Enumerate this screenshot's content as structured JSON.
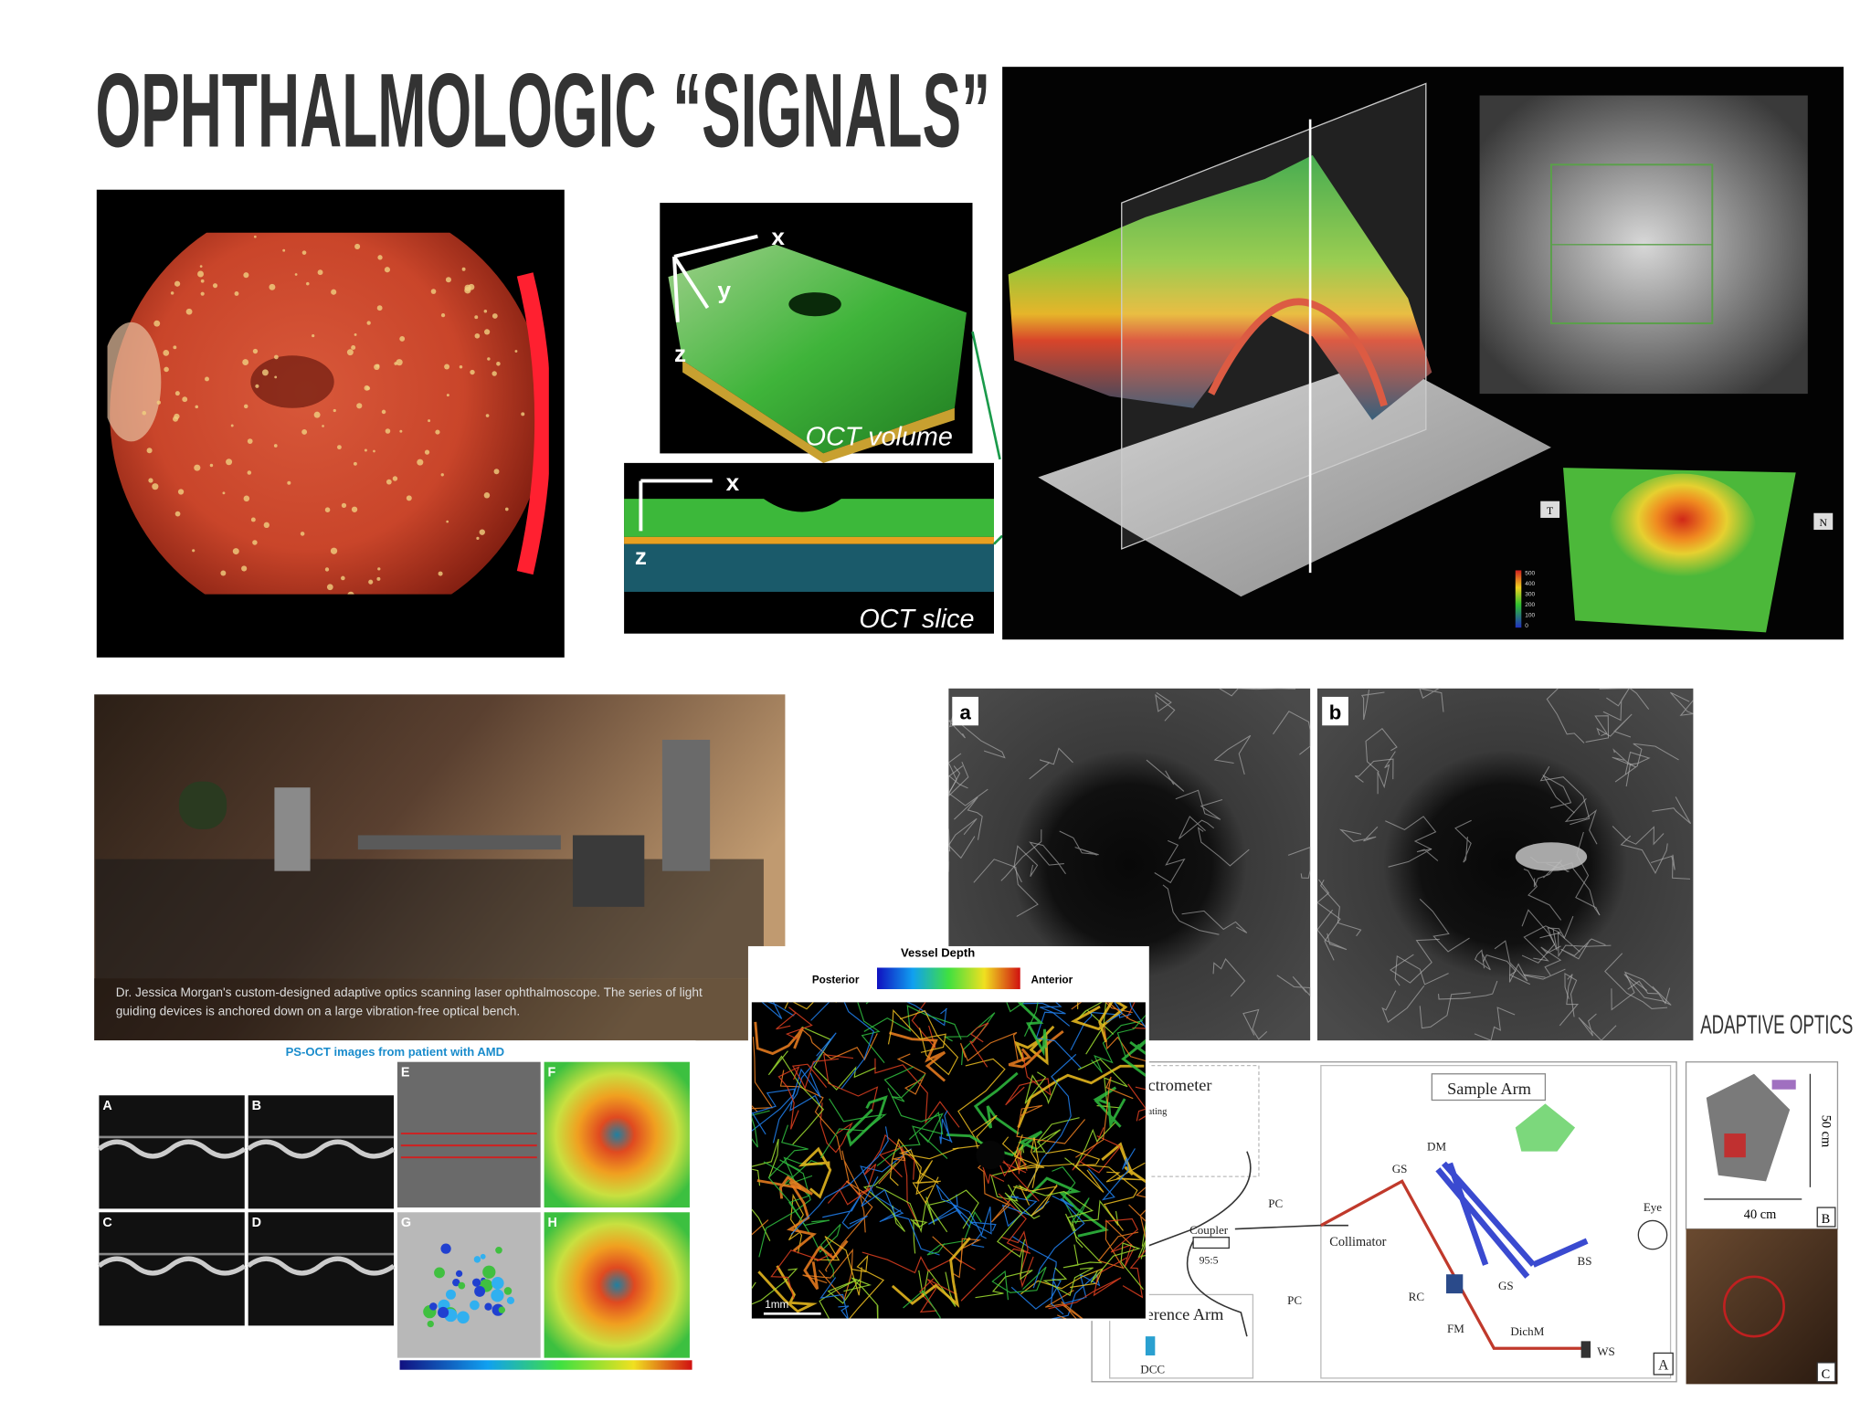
{
  "title": "OPHTHALMOLOGIC “SIGNALS”",
  "oct": {
    "volume_axes": [
      "x",
      "y",
      "z"
    ],
    "volume_label": "OCT volume",
    "slice_axes": [
      "x",
      "z"
    ],
    "slice_label": "OCT slice"
  },
  "oct_3d": {
    "orientation": [
      "T",
      "N"
    ],
    "colorbar_ticks": [
      "500",
      "400",
      "300",
      "200",
      "100",
      "0"
    ]
  },
  "lab_photo": {
    "caption": [
      "Dr. Jessica Morgan's custom-designed adaptive optics scanning laser ophthalmoscope. The series of light",
      "guiding devices is anchored down on a large vibration-free optical bench."
    ]
  },
  "ps_oct": {
    "title": "PS-OCT images from patient with AMD",
    "panels": [
      "A",
      "B",
      "C",
      "D",
      "E",
      "F",
      "G",
      "H"
    ]
  },
  "vessel_map": {
    "title": "Vessel Depth",
    "left": "Posterior",
    "right": "Anterior",
    "scale": "1mm"
  },
  "angiograms": {
    "panels": [
      "a",
      "b"
    ]
  },
  "section_label": "ADAPTIVE OPTICS",
  "setup_diagram": {
    "labels": [
      "ctrometer",
      "ating",
      "Sample Arm",
      "DM",
      "GS",
      "PC",
      "Coupler",
      "95:5",
      "Collimator",
      "Eye",
      "BS",
      "RC",
      "GS",
      "FM",
      "DichM",
      "WS",
      "A",
      "PC",
      "erence Arm",
      "DCC"
    ]
  },
  "device_photos": {
    "height": "50 cm",
    "width": "40 cm",
    "panels": [
      "B",
      "C"
    ]
  }
}
